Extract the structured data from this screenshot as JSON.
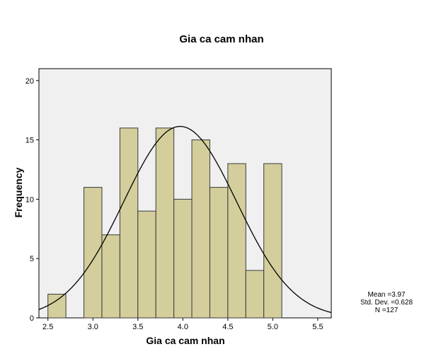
{
  "chart_data": {
    "type": "histogram",
    "title": "Gia ca cam nhan",
    "xlabel": "Gia ca cam nhan",
    "ylabel": "Frequency",
    "xlim": [
      2.4,
      5.65
    ],
    "ylim": [
      0,
      21
    ],
    "x_ticks": [
      2.5,
      3.0,
      3.5,
      4.0,
      4.5,
      5.0,
      5.5
    ],
    "x_tick_labels": [
      "2.5",
      "3.0",
      "3.5",
      "4.0",
      "4.5",
      "5.0",
      "5.5"
    ],
    "y_ticks": [
      0,
      5,
      10,
      15,
      20
    ],
    "y_tick_labels": [
      "0",
      "5",
      "10",
      "15",
      "20"
    ],
    "bin_width": 0.2,
    "bins": [
      {
        "start": 2.5,
        "end": 2.7,
        "count": 2
      },
      {
        "start": 2.9,
        "end": 3.1,
        "count": 11
      },
      {
        "start": 3.1,
        "end": 3.3,
        "count": 7
      },
      {
        "start": 3.3,
        "end": 3.5,
        "count": 16
      },
      {
        "start": 3.5,
        "end": 3.7,
        "count": 9
      },
      {
        "start": 3.7,
        "end": 3.9,
        "count": 16
      },
      {
        "start": 3.9,
        "end": 4.1,
        "count": 10
      },
      {
        "start": 4.1,
        "end": 4.3,
        "count": 15
      },
      {
        "start": 4.3,
        "end": 4.5,
        "count": 11
      },
      {
        "start": 4.5,
        "end": 4.7,
        "count": 13
      },
      {
        "start": 4.7,
        "end": 4.9,
        "count": 4
      },
      {
        "start": 4.9,
        "end": 5.1,
        "count": 13
      }
    ],
    "normal_curve": {
      "mean": 3.97,
      "std_dev": 0.628,
      "n": 127
    },
    "stats": {
      "mean_label": "Mean =3.97",
      "std_label": "Std. Dev. =0.628",
      "n_label": "N =127"
    },
    "colors": {
      "bar_fill": "#D3CE9C",
      "bar_stroke": "#3A3A3A",
      "plot_background": "#F0F0F0",
      "curve": "#000000",
      "frame": "#000000"
    }
  }
}
